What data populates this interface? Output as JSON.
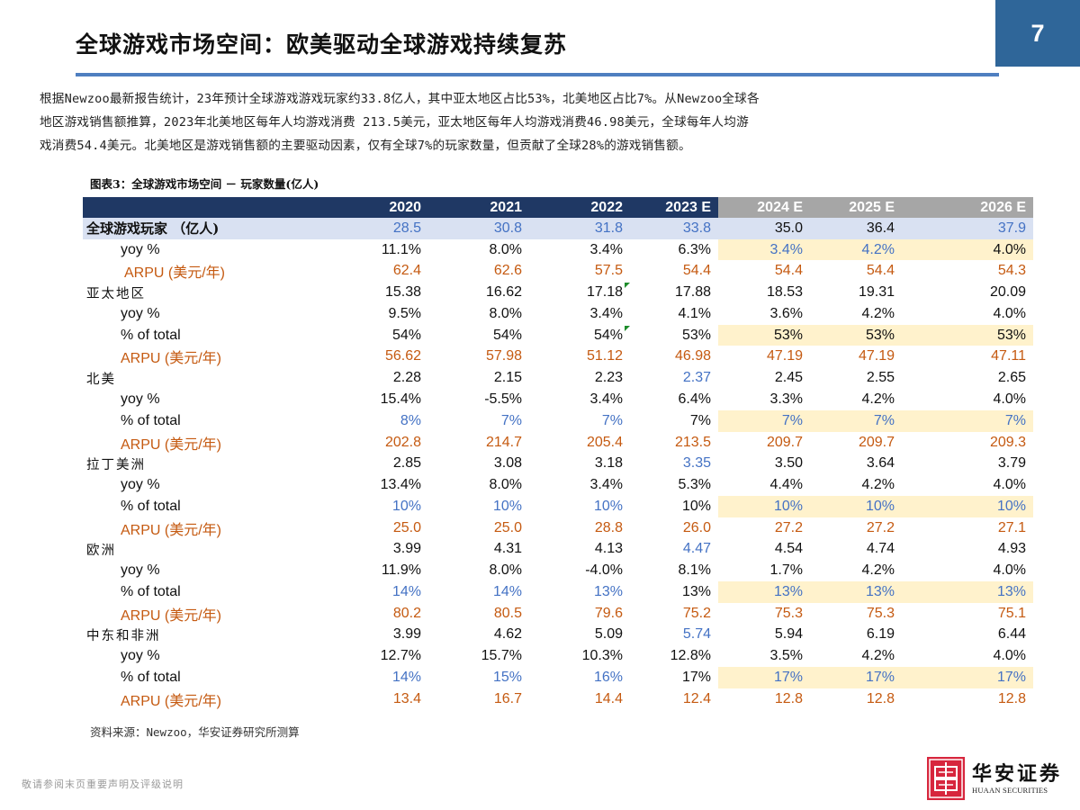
{
  "header": {
    "title": "全球游戏市场空间：欧美驱动全球游戏持续复苏",
    "page_number": "7",
    "accent_color": "#2f6699",
    "rule_color": "#4f7fc0"
  },
  "intro": {
    "lines": [
      "根据Newzoo最新报告统计，23年预计全球游戏游戏玩家约33.8亿人，其中亚太地区占比53%，北美地区占比7%。从Newzoo全球各",
      "地区游戏销售额推算，2023年北美地区每年人均游戏消费 213.5美元，亚太地区每年人均游戏消费46.98美元，全球每年人均游",
      "戏消费54.4美元。北美地区是游戏销售额的主要驱动因素，仅有全球7%的玩家数量，但贡献了全球28%的游戏销售额。"
    ]
  },
  "table": {
    "caption": "图表3：全球游戏市场空间 － 玩家数量(亿人)",
    "columns": [
      "2020",
      "2021",
      "2022",
      "2023 E",
      "2024 E",
      "2025 E",
      "2026 E"
    ],
    "colors": {
      "header_hist": "#1f3864",
      "header_est": "#a6a6a6",
      "total_row": "#d9e1f2",
      "highlight": "#fff2cc",
      "blue": "#4472c4",
      "orange": "#c55a11"
    },
    "rows": [
      {
        "label": "全球游戏玩家 （亿人)",
        "type": "total",
        "values": [
          "28.5",
          "30.8",
          "31.8",
          "33.8",
          "35.0",
          "36.4",
          "37.9"
        ]
      },
      {
        "label": "yoy %",
        "type": "sub",
        "values": [
          "11.1%",
          "8.0%",
          "3.4%",
          "6.3%",
          "3.4%",
          "4.2%",
          "4.0%"
        ]
      },
      {
        "label": "ARPU (美元/年)",
        "type": "arpu",
        "values": [
          "62.4",
          "62.6",
          "57.5",
          "54.4",
          "54.4",
          "54.4",
          "54.3"
        ]
      },
      {
        "label": "亚太地区",
        "type": "region",
        "values": [
          "15.38",
          "16.62",
          "17.18",
          "17.88",
          "18.53",
          "19.31",
          "20.09"
        ]
      },
      {
        "label": "yoy %",
        "type": "sub",
        "values": [
          "9.5%",
          "8.0%",
          "3.4%",
          "4.1%",
          "3.6%",
          "4.2%",
          "4.0%"
        ]
      },
      {
        "label": "% of total",
        "type": "share",
        "values": [
          "54%",
          "54%",
          "54%",
          "53%",
          "53%",
          "53%",
          "53%"
        ]
      },
      {
        "label": "ARPU (美元/年)",
        "type": "arpu",
        "values": [
          "56.62",
          "57.98",
          "51.12",
          "46.98",
          "47.19",
          "47.19",
          "47.11"
        ]
      },
      {
        "label": "北美",
        "type": "region",
        "values": [
          "2.28",
          "2.15",
          "2.23",
          "2.37",
          "2.45",
          "2.55",
          "2.65"
        ]
      },
      {
        "label": "yoy %",
        "type": "sub",
        "values": [
          "15.4%",
          "-5.5%",
          "3.4%",
          "6.4%",
          "3.3%",
          "4.2%",
          "4.0%"
        ]
      },
      {
        "label": "% of total",
        "type": "share",
        "values": [
          "8%",
          "7%",
          "7%",
          "7%",
          "7%",
          "7%",
          "7%"
        ]
      },
      {
        "label": "ARPU (美元/年)",
        "type": "arpu",
        "values": [
          "202.8",
          "214.7",
          "205.4",
          "213.5",
          "209.7",
          "209.7",
          "209.3"
        ]
      },
      {
        "label": "拉丁美洲",
        "type": "region",
        "values": [
          "2.85",
          "3.08",
          "3.18",
          "3.35",
          "3.50",
          "3.64",
          "3.79"
        ]
      },
      {
        "label": "yoy %",
        "type": "sub",
        "values": [
          "13.4%",
          "8.0%",
          "3.4%",
          "5.3%",
          "4.4%",
          "4.2%",
          "4.0%"
        ]
      },
      {
        "label": "% of total",
        "type": "share",
        "values": [
          "10%",
          "10%",
          "10%",
          "10%",
          "10%",
          "10%",
          "10%"
        ]
      },
      {
        "label": "ARPU (美元/年)",
        "type": "arpu",
        "values": [
          "25.0",
          "25.0",
          "28.8",
          "26.0",
          "27.2",
          "27.2",
          "27.1"
        ]
      },
      {
        "label": "欧洲",
        "type": "region",
        "values": [
          "3.99",
          "4.31",
          "4.13",
          "4.47",
          "4.54",
          "4.74",
          "4.93"
        ]
      },
      {
        "label": "yoy %",
        "type": "sub",
        "values": [
          "11.9%",
          "8.0%",
          "-4.0%",
          "8.1%",
          "1.7%",
          "4.2%",
          "4.0%"
        ]
      },
      {
        "label": "% of total",
        "type": "share",
        "values": [
          "14%",
          "14%",
          "13%",
          "13%",
          "13%",
          "13%",
          "13%"
        ]
      },
      {
        "label": "ARPU (美元/年)",
        "type": "arpu",
        "values": [
          "80.2",
          "80.5",
          "79.6",
          "75.2",
          "75.3",
          "75.3",
          "75.1"
        ]
      },
      {
        "label": "中东和非洲",
        "type": "region",
        "values": [
          "3.99",
          "4.62",
          "5.09",
          "5.74",
          "5.94",
          "6.19",
          "6.44"
        ]
      },
      {
        "label": "yoy %",
        "type": "sub",
        "values": [
          "12.7%",
          "15.7%",
          "10.3%",
          "12.8%",
          "3.5%",
          "4.2%",
          "4.0%"
        ]
      },
      {
        "label": "% of total",
        "type": "share",
        "values": [
          "14%",
          "15%",
          "16%",
          "17%",
          "17%",
          "17%",
          "17%"
        ]
      },
      {
        "label": "ARPU (美元/年)",
        "type": "arpu",
        "values": [
          "13.4",
          "16.7",
          "14.4",
          "12.4",
          "12.8",
          "12.8",
          "12.8"
        ]
      }
    ]
  },
  "source": "资料来源：Newzoo，华安证券研究所测算",
  "footer": {
    "disclaimer": "敬请参阅末页重要声明及评级说明",
    "logo_cn": "华安证券",
    "logo_en": "HUAAN SECURITIES",
    "logo_color": "#d7263d"
  }
}
